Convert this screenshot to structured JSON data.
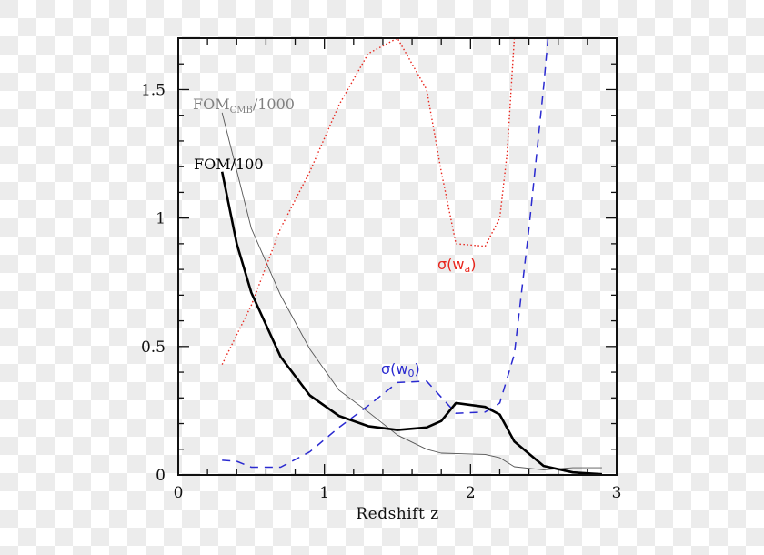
{
  "chart_data": {
    "type": "line",
    "title": "",
    "xlabel": "Redshift z",
    "ylabel": "",
    "xlim": [
      0,
      3
    ],
    "ylim": [
      0,
      1.7
    ],
    "grid": false,
    "x_ticks": [
      0,
      1,
      2,
      3
    ],
    "x_tick_labels": [
      "0",
      "1",
      "2",
      "3"
    ],
    "x_minor_step": 0.2,
    "y_ticks": [
      0,
      0.5,
      1,
      1.5
    ],
    "y_tick_labels": [
      "0",
      "0.5",
      "1",
      "1.5"
    ],
    "y_minor_step": 0.1,
    "legend_position": "inline labels",
    "series": [
      {
        "name": "FOM/100",
        "label_parts": {
          "main": "FOM/100"
        },
        "color": "#000000",
        "style": "solid-thick",
        "x": [
          0.3,
          0.4,
          0.5,
          0.7,
          0.9,
          1.1,
          1.3,
          1.5,
          1.7,
          1.8,
          1.9,
          2.1,
          2.2,
          2.3,
          2.5,
          2.7,
          2.9
        ],
        "y": [
          1.18,
          0.9,
          0.71,
          0.46,
          0.31,
          0.23,
          0.19,
          0.175,
          0.185,
          0.21,
          0.28,
          0.265,
          0.235,
          0.13,
          0.035,
          0.01,
          0.003
        ]
      },
      {
        "name": "FOM_CMB/1000",
        "label_parts": {
          "main": "FOM",
          "sub": "CMB",
          "suffix": "/1000"
        },
        "color": "#808080",
        "style": "solid-thin",
        "x": [
          0.3,
          0.5,
          0.7,
          0.9,
          1.1,
          1.3,
          1.5,
          1.7,
          1.8,
          2.1,
          2.2,
          2.3,
          2.5,
          2.7,
          2.9
        ],
        "y": [
          1.41,
          0.96,
          0.7,
          0.49,
          0.33,
          0.245,
          0.155,
          0.1,
          0.085,
          0.08,
          0.067,
          0.032,
          0.02,
          0.028,
          0.028
        ]
      },
      {
        "name": "σ(w_a)",
        "label_parts": {
          "main": "σ(w",
          "sub": "a",
          "suffix": ")"
        },
        "color": "#e8251c",
        "style": "dotted",
        "x": [
          0.3,
          0.5,
          0.7,
          0.9,
          1.1,
          1.3,
          1.5,
          1.7,
          1.8,
          1.9,
          2.1,
          2.2,
          2.25,
          2.3
        ],
        "y": [
          0.43,
          0.66,
          0.96,
          1.18,
          1.44,
          1.64,
          1.7,
          1.5,
          1.18,
          0.9,
          0.89,
          1.0,
          1.25,
          1.7
        ]
      },
      {
        "name": "σ(w_0)",
        "label_parts": {
          "main": "σ(w",
          "sub": "0",
          "suffix": ")"
        },
        "color": "#2a2ad0",
        "style": "dashed",
        "x": [
          0.3,
          0.4,
          0.5,
          0.7,
          0.9,
          1.1,
          1.3,
          1.5,
          1.7,
          1.9,
          2.1,
          2.2,
          2.3,
          2.4,
          2.5,
          2.53
        ],
        "y": [
          0.057,
          0.053,
          0.03,
          0.03,
          0.09,
          0.185,
          0.27,
          0.36,
          0.365,
          0.24,
          0.245,
          0.28,
          0.47,
          0.96,
          1.51,
          1.7
        ]
      }
    ],
    "annotations": [
      {
        "text": "FOM_CMB/1000",
        "x": 0.1,
        "y": 1.45,
        "color": "#808080"
      },
      {
        "text": "FOM/100",
        "x": 0.1,
        "y": 1.22,
        "color": "#000000"
      },
      {
        "text": "σ(w_a)",
        "x": 1.77,
        "y": 0.78,
        "color": "#e8251c"
      },
      {
        "text": "σ(w_0)",
        "x": 1.43,
        "y": 0.39,
        "color": "#2a2ad0"
      }
    ]
  }
}
